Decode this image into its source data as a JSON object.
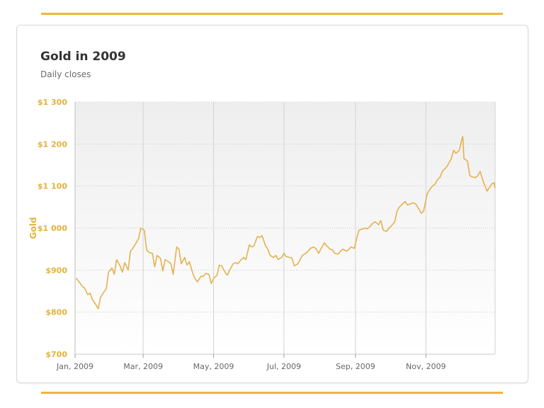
{
  "colors": {
    "accent": "#e3b23c",
    "line": "#e5b14e",
    "rule": "#ecb83a"
  },
  "chart_data": {
    "type": "line",
    "title": "Gold in 2009",
    "subtitle": "Daily closes",
    "ylabel": "Gold",
    "xlabel": "",
    "xlim": [
      "2009-01-01",
      "2009-12-31"
    ],
    "ylim": [
      700,
      1300
    ],
    "yticks": [
      700,
      800,
      900,
      1000,
      1100,
      1200,
      1300
    ],
    "ytick_labels": [
      "$700",
      "$800",
      "$900",
      "$1 000",
      "$1 100",
      "$1 200",
      "$1 300"
    ],
    "xticks": [
      "2009-01-01",
      "2009-03-01",
      "2009-05-01",
      "2009-07-01",
      "2009-09-01",
      "2009-11-01"
    ],
    "xtick_labels": [
      "Jan, 2009",
      "Mar, 2009",
      "May, 2009",
      "Jul, 2009",
      "Sep, 2009",
      "Nov, 2009"
    ],
    "grid": true,
    "legend": "none",
    "series": [
      {
        "values": [
          [
            "2009-01-02",
            881
          ],
          [
            "2009-01-05",
            870
          ],
          [
            "2009-01-07",
            862
          ],
          [
            "2009-01-09",
            858
          ],
          [
            "2009-01-12",
            842
          ],
          [
            "2009-01-14",
            845
          ],
          [
            "2009-01-16",
            830
          ],
          [
            "2009-01-19",
            818
          ],
          [
            "2009-01-21",
            808
          ],
          [
            "2009-01-23",
            835
          ],
          [
            "2009-01-26",
            848
          ],
          [
            "2009-01-28",
            855
          ],
          [
            "2009-01-30",
            895
          ],
          [
            "2009-02-02",
            905
          ],
          [
            "2009-02-04",
            890
          ],
          [
            "2009-02-06",
            925
          ],
          [
            "2009-02-09",
            910
          ],
          [
            "2009-02-11",
            895
          ],
          [
            "2009-02-13",
            918
          ],
          [
            "2009-02-16",
            900
          ],
          [
            "2009-02-18",
            945
          ],
          [
            "2009-02-20",
            952
          ],
          [
            "2009-02-23",
            965
          ],
          [
            "2009-02-25",
            975
          ],
          [
            "2009-02-27",
            1000
          ],
          [
            "2009-03-02",
            995
          ],
          [
            "2009-03-04",
            948
          ],
          [
            "2009-03-06",
            942
          ],
          [
            "2009-03-09",
            940
          ],
          [
            "2009-03-11",
            908
          ],
          [
            "2009-03-13",
            935
          ],
          [
            "2009-03-16",
            928
          ],
          [
            "2009-03-18",
            898
          ],
          [
            "2009-03-20",
            925
          ],
          [
            "2009-03-23",
            920
          ],
          [
            "2009-03-25",
            915
          ],
          [
            "2009-03-27",
            890
          ],
          [
            "2009-03-30",
            955
          ],
          [
            "2009-04-01",
            950
          ],
          [
            "2009-04-03",
            915
          ],
          [
            "2009-04-06",
            930
          ],
          [
            "2009-04-08",
            912
          ],
          [
            "2009-04-10",
            920
          ],
          [
            "2009-04-13",
            892
          ],
          [
            "2009-04-15",
            880
          ],
          [
            "2009-04-17",
            872
          ],
          [
            "2009-04-20",
            885
          ],
          [
            "2009-04-22",
            885
          ],
          [
            "2009-04-24",
            892
          ],
          [
            "2009-04-27",
            890
          ],
          [
            "2009-04-29",
            868
          ],
          [
            "2009-05-01",
            880
          ],
          [
            "2009-05-04",
            888
          ],
          [
            "2009-05-06",
            912
          ],
          [
            "2009-05-08",
            910
          ],
          [
            "2009-05-11",
            895
          ],
          [
            "2009-05-13",
            888
          ],
          [
            "2009-05-15",
            900
          ],
          [
            "2009-05-18",
            915
          ],
          [
            "2009-05-20",
            918
          ],
          [
            "2009-05-22",
            915
          ],
          [
            "2009-05-25",
            925
          ],
          [
            "2009-05-27",
            930
          ],
          [
            "2009-05-29",
            925
          ],
          [
            "2009-06-01",
            960
          ],
          [
            "2009-06-03",
            955
          ],
          [
            "2009-06-05",
            958
          ],
          [
            "2009-06-08",
            980
          ],
          [
            "2009-06-10",
            978
          ],
          [
            "2009-06-12",
            982
          ],
          [
            "2009-06-15",
            958
          ],
          [
            "2009-06-17",
            950
          ],
          [
            "2009-06-19",
            935
          ],
          [
            "2009-06-22",
            930
          ],
          [
            "2009-06-24",
            935
          ],
          [
            "2009-06-26",
            925
          ],
          [
            "2009-06-29",
            930
          ],
          [
            "2009-07-01",
            940
          ],
          [
            "2009-07-03",
            932
          ],
          [
            "2009-07-06",
            930
          ],
          [
            "2009-07-08",
            928
          ],
          [
            "2009-07-10",
            910
          ],
          [
            "2009-07-13",
            915
          ],
          [
            "2009-07-15",
            925
          ],
          [
            "2009-07-17",
            935
          ],
          [
            "2009-07-20",
            940
          ],
          [
            "2009-07-22",
            945
          ],
          [
            "2009-07-24",
            952
          ],
          [
            "2009-07-27",
            955
          ],
          [
            "2009-07-29",
            950
          ],
          [
            "2009-07-31",
            940
          ],
          [
            "2009-08-03",
            955
          ],
          [
            "2009-08-05",
            965
          ],
          [
            "2009-08-07",
            958
          ],
          [
            "2009-08-10",
            950
          ],
          [
            "2009-08-12",
            948
          ],
          [
            "2009-08-14",
            940
          ],
          [
            "2009-08-17",
            938
          ],
          [
            "2009-08-19",
            945
          ],
          [
            "2009-08-21",
            950
          ],
          [
            "2009-08-24",
            945
          ],
          [
            "2009-08-26",
            948
          ],
          [
            "2009-08-28",
            955
          ],
          [
            "2009-08-31",
            952
          ],
          [
            "2009-09-02",
            975
          ],
          [
            "2009-09-04",
            995
          ],
          [
            "2009-09-07",
            998
          ],
          [
            "2009-09-09",
            1000
          ],
          [
            "2009-09-11",
            998
          ],
          [
            "2009-09-14",
            1005
          ],
          [
            "2009-09-16",
            1012
          ],
          [
            "2009-09-18",
            1015
          ],
          [
            "2009-09-21",
            1008
          ],
          [
            "2009-09-23",
            1018
          ],
          [
            "2009-09-25",
            995
          ],
          [
            "2009-09-28",
            992
          ],
          [
            "2009-09-30",
            1000
          ],
          [
            "2009-10-02",
            1005
          ],
          [
            "2009-10-05",
            1015
          ],
          [
            "2009-10-07",
            1040
          ],
          [
            "2009-10-09",
            1050
          ],
          [
            "2009-10-12",
            1058
          ],
          [
            "2009-10-14",
            1063
          ],
          [
            "2009-10-16",
            1055
          ],
          [
            "2009-10-19",
            1058
          ],
          [
            "2009-10-21",
            1060
          ],
          [
            "2009-10-23",
            1058
          ],
          [
            "2009-10-26",
            1045
          ],
          [
            "2009-10-28",
            1035
          ],
          [
            "2009-10-30",
            1040
          ],
          [
            "2009-11-02",
            1080
          ],
          [
            "2009-11-04",
            1090
          ],
          [
            "2009-11-06",
            1098
          ],
          [
            "2009-11-09",
            1105
          ],
          [
            "2009-11-11",
            1115
          ],
          [
            "2009-11-13",
            1120
          ],
          [
            "2009-11-16",
            1138
          ],
          [
            "2009-11-18",
            1142
          ],
          [
            "2009-11-20",
            1150
          ],
          [
            "2009-11-23",
            1165
          ],
          [
            "2009-11-25",
            1185
          ],
          [
            "2009-11-27",
            1178
          ],
          [
            "2009-11-30",
            1185
          ],
          [
            "2009-12-02",
            1210
          ],
          [
            "2009-12-03",
            1218
          ],
          [
            "2009-12-04",
            1165
          ],
          [
            "2009-12-07",
            1160
          ],
          [
            "2009-12-09",
            1125
          ],
          [
            "2009-12-11",
            1122
          ],
          [
            "2009-12-14",
            1120
          ],
          [
            "2009-12-16",
            1125
          ],
          [
            "2009-12-18",
            1135
          ],
          [
            "2009-12-21",
            1108
          ],
          [
            "2009-12-23",
            1095
          ],
          [
            "2009-12-24",
            1088
          ],
          [
            "2009-12-28",
            1105
          ],
          [
            "2009-12-30",
            1108
          ],
          [
            "2009-12-31",
            1095
          ]
        ]
      }
    ]
  }
}
